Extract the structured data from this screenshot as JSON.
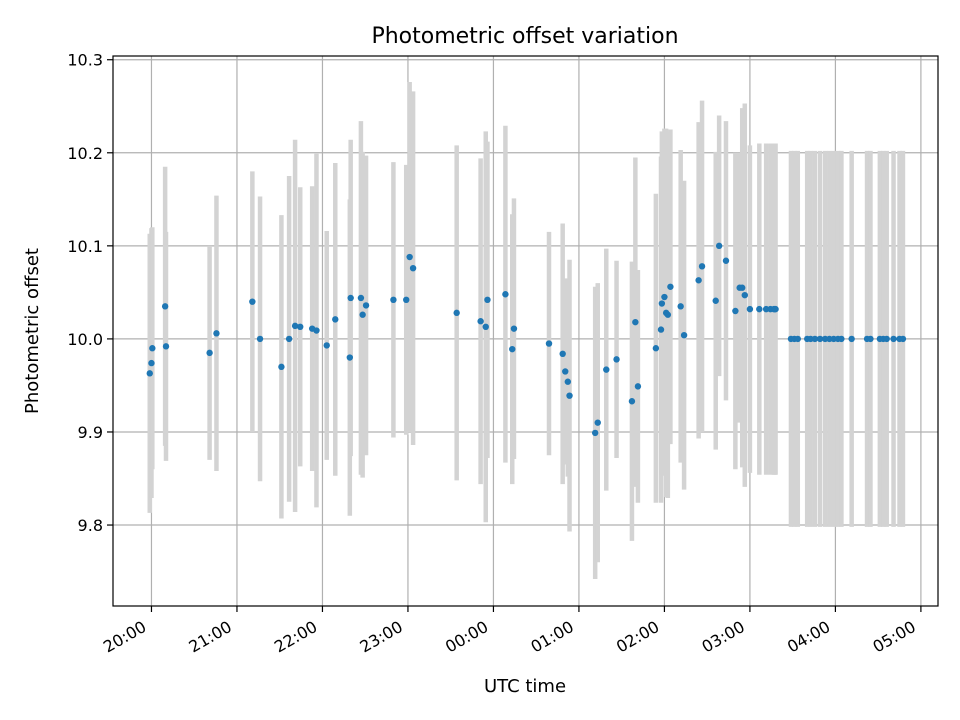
{
  "chart_data": {
    "type": "scatter",
    "title": "Photometric offset variation",
    "xlabel": "UTC time",
    "ylabel": "Photometric offset",
    "x_tick_labels": [
      "20:00",
      "21:00",
      "22:00",
      "23:00",
      "00:00",
      "01:00",
      "02:00",
      "03:00",
      "04:00",
      "05:00"
    ],
    "x_tick_hours": [
      20,
      21,
      22,
      23,
      24,
      25,
      26,
      27,
      28,
      29
    ],
    "y_tick_values": [
      9.8,
      9.9,
      10.0,
      10.1,
      10.2,
      10.3
    ],
    "y_tick_labels": [
      "9.8",
      "9.9",
      "10.0",
      "10.1",
      "10.2",
      "10.3"
    ],
    "xlim_hours": [
      19.55,
      29.2
    ],
    "ylim": [
      9.713,
      10.304
    ],
    "grid": true,
    "colors": {
      "point": "#1f77b4",
      "error_bar": "#d3d3d3"
    },
    "series": [
      {
        "x_hours": [
          19.98,
          20.0,
          20.01,
          20.16,
          20.17,
          20.68,
          20.76,
          21.18,
          21.27,
          21.52,
          21.61,
          21.68,
          21.74,
          21.88,
          21.93,
          22.05,
          22.15,
          22.32,
          22.33,
          22.45,
          22.47,
          22.51,
          22.83,
          22.98,
          23.02,
          23.06,
          23.57,
          23.85,
          23.91,
          23.93,
          24.14,
          24.22,
          24.24,
          24.65,
          24.81,
          24.84,
          24.87,
          24.89,
          25.19,
          25.22,
          25.32,
          25.44,
          25.62,
          25.66,
          25.69,
          25.9,
          25.96,
          25.97,
          26.0,
          26.02,
          26.04,
          26.07,
          26.19,
          26.23,
          26.4,
          26.44,
          26.6,
          26.64,
          26.72,
          26.83,
          26.88,
          26.91,
          26.94,
          27.0,
          27.11,
          27.19,
          27.24,
          27.28,
          27.29,
          27.3,
          27.48,
          27.52,
          27.56,
          27.67,
          27.71,
          27.76,
          27.82,
          27.88,
          27.93,
          27.98,
          28.03,
          28.07,
          28.19,
          28.37,
          28.41,
          28.52,
          28.56,
          28.6,
          28.68,
          28.75,
          28.79
        ],
        "y": [
          9.963,
          9.974,
          9.99,
          10.035,
          9.992,
          9.985,
          10.006,
          10.04,
          10.0,
          9.97,
          10.0,
          10.014,
          10.013,
          10.011,
          10.009,
          9.993,
          10.021,
          9.98,
          10.044,
          10.044,
          10.026,
          10.036,
          10.042,
          10.042,
          10.088,
          10.076,
          10.028,
          10.019,
          10.013,
          10.042,
          10.048,
          9.989,
          10.011,
          9.995,
          9.984,
          9.965,
          9.954,
          9.939,
          9.899,
          9.91,
          9.967,
          9.978,
          9.933,
          10.018,
          9.949,
          9.99,
          10.01,
          10.038,
          10.045,
          10.028,
          10.026,
          10.056,
          10.035,
          10.004,
          10.063,
          10.078,
          10.041,
          10.1,
          10.084,
          10.03,
          10.055,
          10.055,
          10.047,
          10.032,
          10.032,
          10.032,
          10.032,
          10.032,
          10.032,
          10.032,
          10.0,
          10.0,
          10.0,
          10.0,
          10.0,
          10.0,
          10.0,
          10.0,
          10.0,
          10.0,
          10.0,
          10.0,
          10.0,
          10.0,
          10.0,
          10.0,
          10.0,
          10.0,
          10.0,
          10.0,
          10.0
        ],
        "err": [
          0.15,
          0.145,
          0.13,
          0.15,
          0.123,
          0.115,
          0.148,
          0.14,
          0.153,
          0.163,
          0.175,
          0.2,
          0.15,
          0.153,
          0.19,
          0.123,
          0.168,
          0.17,
          0.17,
          0.19,
          0.175,
          0.161,
          0.148,
          0.145,
          0.188,
          0.19,
          0.18,
          0.175,
          0.21,
          0.17,
          0.181,
          0.145,
          0.14,
          0.12,
          0.14,
          0.1,
          0.102,
          0.146,
          0.157,
          0.15,
          0.13,
          0.106,
          0.15,
          0.177,
          0.125,
          0.166,
          0.186,
          0.185,
          0.181,
          0.198,
          0.197,
          0.169,
          0.168,
          0.166,
          0.17,
          0.178,
          0.16,
          0.14,
          0.15,
          0.17,
          0.145,
          0.193,
          0.206,
          0.176,
          0.178,
          0.178,
          0.178,
          0.178,
          0.178,
          0.178,
          0.202,
          0.202,
          0.202,
          0.202,
          0.202,
          0.202,
          0.202,
          0.202,
          0.202,
          0.202,
          0.202,
          0.202,
          0.202,
          0.202,
          0.202,
          0.202,
          0.202,
          0.202,
          0.202,
          0.202,
          0.202
        ]
      }
    ]
  }
}
